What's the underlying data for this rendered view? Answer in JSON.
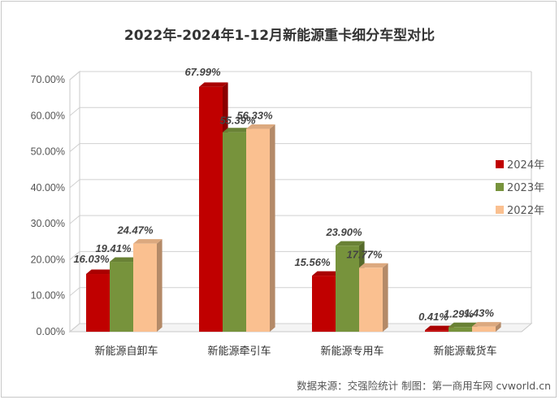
{
  "chart_data": {
    "type": "bar",
    "title": "2022年-2024年1-12月新能源重卡细分车型对比",
    "categories": [
      "新能源自卸车",
      "新能源牵引车",
      "新能源专用车",
      "新能源载货车"
    ],
    "series": [
      {
        "name": "2024年",
        "values": [
          16.03,
          67.99,
          15.56,
          0.41
        ],
        "labels": [
          "16.03%",
          "67.99%",
          "15.56%",
          "0.41%"
        ],
        "color": "#c00000"
      },
      {
        "name": "2023年",
        "values": [
          19.41,
          55.39,
          23.9,
          1.29
        ],
        "labels": [
          "19.41%",
          "55.39%",
          "23.90%",
          "1.29%"
        ],
        "color": "#77933c"
      },
      {
        "name": "2022年",
        "values": [
          24.47,
          56.33,
          17.77,
          1.43
        ],
        "labels": [
          "24.47%",
          "56.33%",
          "17.77%",
          "1.43%"
        ],
        "color": "#fac090"
      }
    ],
    "ylim": [
      0,
      70
    ],
    "yticks": [
      "0.00%",
      "10.00%",
      "20.00%",
      "30.00%",
      "40.00%",
      "50.00%",
      "60.00%",
      "70.00%"
    ],
    "grid": true,
    "legend_position": "right",
    "three_d": true
  },
  "source_note": "数据来源：交强险统计  制图：第一商用车网 cvworld.cn"
}
